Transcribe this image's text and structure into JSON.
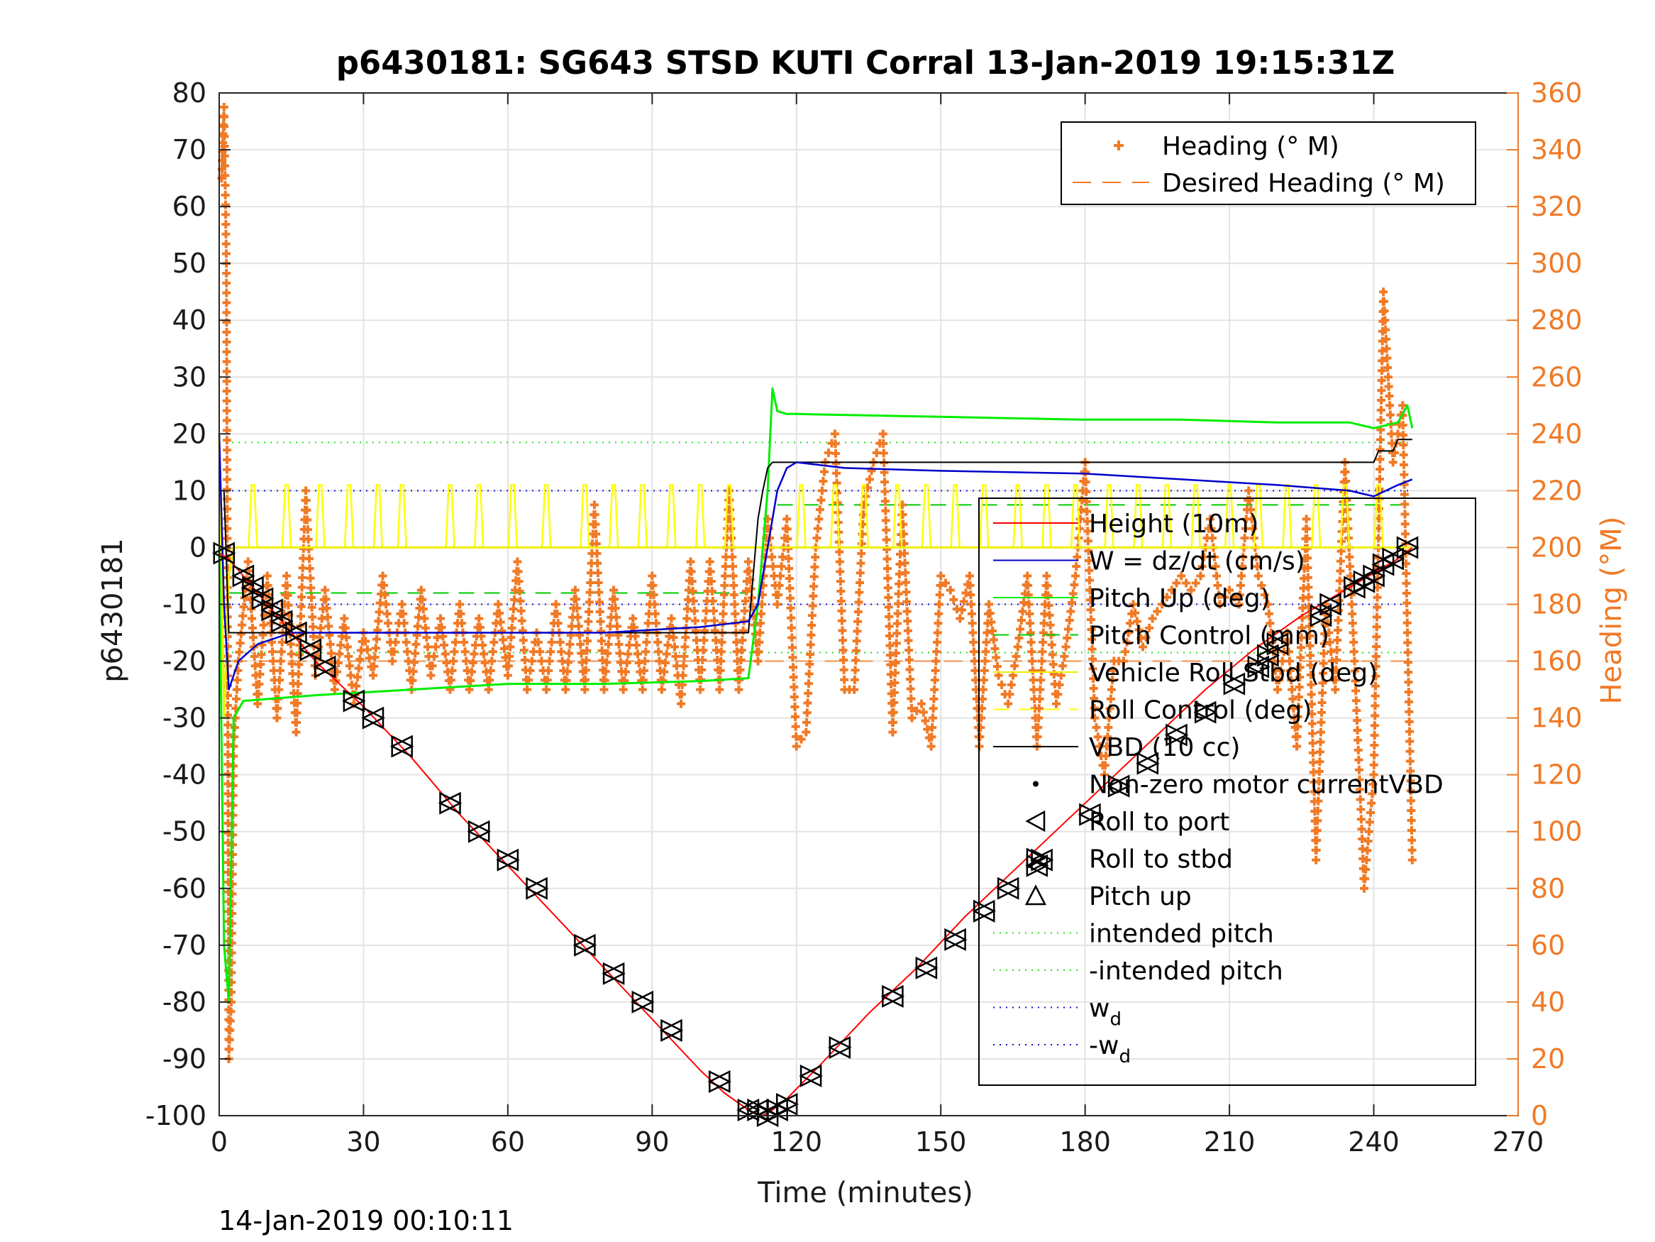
{
  "chart_data": {
    "type": "line",
    "title": "p6430181: SG643 STSD KUTI Corral 13-Jan-2019 19:15:31Z",
    "xlabel": "Time (minutes)",
    "ylabel": "p6430181",
    "y2label": "Heading (°M)",
    "footer": "14-Jan-2019 00:10:11",
    "xlim": [
      0,
      270
    ],
    "ylim": [
      -100,
      80
    ],
    "y2lim": [
      0,
      360
    ],
    "xticks": [
      0,
      30,
      60,
      90,
      120,
      150,
      180,
      210,
      240,
      270
    ],
    "yticks": [
      80,
      70,
      60,
      50,
      40,
      30,
      20,
      10,
      0,
      -10,
      -20,
      -30,
      -40,
      -50,
      -60,
      -70,
      -80,
      -90,
      -100
    ],
    "y2ticks": [
      360,
      340,
      320,
      300,
      280,
      260,
      240,
      220,
      200,
      180,
      160,
      140,
      120,
      100,
      80,
      60,
      40,
      20,
      0
    ],
    "grid": true,
    "colors": {
      "height": "#ff0000",
      "w": "#0000cc",
      "pitch_up": "#00ee00",
      "pitch_control": "#00cc00",
      "roll": "#eeee00",
      "roll_control": "#ffff00",
      "vbd": "#000000",
      "heading": "#f07a26",
      "intended_pitch": "#22dd22",
      "wd": "#1111dd"
    },
    "legend_upper": [
      {
        "label": "Heading (° M)",
        "marker": "plus"
      },
      {
        "label": "Desired Heading (° M)",
        "marker": "dash"
      }
    ],
    "legend_upper_position": "top-right",
    "legend_main": [
      {
        "label": "Height (10m)",
        "marker": "line",
        "color": "#ff0000"
      },
      {
        "label": "W = dz/dt (cm/s)",
        "marker": "line",
        "color": "#0000cc"
      },
      {
        "label": "Pitch Up (deg)",
        "marker": "line",
        "color": "#00ee00"
      },
      {
        "label": "Pitch Control (mm)",
        "marker": "dash",
        "color": "#00cc00"
      },
      {
        "label": "Vehicle Roll Stbd (deg)",
        "marker": "line",
        "color": "#eeee00"
      },
      {
        "label": "Roll Control (deg)",
        "marker": "dash",
        "color": "#ffff00"
      },
      {
        "label": "VBD (10 cc)",
        "marker": "line",
        "color": "#000000"
      },
      {
        "label": "Non-zero motor currentVBD",
        "marker": "dot",
        "color": "#000000"
      },
      {
        "label": "Roll to port",
        "marker": "tri-left",
        "color": "#000000"
      },
      {
        "label": "Roll to stbd",
        "marker": "tri-right",
        "color": "#000000"
      },
      {
        "label": "Pitch up",
        "marker": "tri-up",
        "color": "#000000"
      },
      {
        "label": "intended pitch",
        "marker": "dot-line",
        "color": "#22dd22"
      },
      {
        "label": "-intended pitch",
        "marker": "dot-line",
        "color": "#22dd22"
      },
      {
        "label": "w",
        "sub": "d",
        "marker": "dot-line",
        "color": "#1111dd"
      },
      {
        "label": "-w",
        "sub": "d",
        "marker": "dot-line",
        "color": "#1111dd"
      }
    ],
    "legend_main_position": "center-right",
    "hlines": {
      "intended_pitch": 18.5,
      "neg_intended_pitch": -18.5,
      "wd": 10,
      "neg_wd": -10,
      "pitch_control_dive": -8,
      "pitch_control_climb": 7.5,
      "desired_heading": 160
    },
    "height_series": {
      "x": [
        0,
        2,
        10,
        20,
        30,
        40,
        50,
        60,
        70,
        80,
        90,
        100,
        105,
        110,
        113,
        115,
        118,
        125,
        135,
        145,
        155,
        165,
        175,
        185,
        195,
        205,
        215,
        225,
        235,
        245,
        248
      ],
      "y": [
        -1,
        -2,
        -10,
        -20,
        -28,
        -37,
        -47,
        -56,
        -65,
        -74,
        -83,
        -92,
        -96,
        -99,
        -100,
        -99,
        -97,
        -91,
        -82,
        -74,
        -65,
        -57,
        -49,
        -41,
        -33,
        -25,
        -18,
        -12,
        -7,
        -2,
        0
      ]
    },
    "w_series": {
      "x": [
        0,
        1,
        2,
        4,
        8,
        15,
        30,
        60,
        80,
        100,
        110,
        112,
        114,
        116,
        118,
        120,
        130,
        150,
        180,
        200,
        220,
        235,
        240,
        245,
        248
      ],
      "y": [
        20,
        -10,
        -25,
        -20,
        -17,
        -15,
        -15,
        -15,
        -15,
        -14,
        -13,
        -10,
        0,
        10,
        14,
        15,
        14,
        13.5,
        13,
        12,
        11,
        10,
        9,
        11,
        12
      ]
    },
    "pitch_up_series": {
      "x": [
        0,
        1,
        2,
        3,
        5,
        20,
        40,
        60,
        80,
        100,
        110,
        112,
        114,
        115,
        116,
        118,
        120,
        150,
        180,
        200,
        220,
        235,
        240,
        245,
        247,
        248
      ],
      "y": [
        0,
        -70,
        -80,
        -30,
        -27,
        -26,
        -25,
        -24,
        -24,
        -23.5,
        -23,
        -10,
        10,
        28,
        24,
        23.5,
        23.5,
        23,
        22.5,
        22.5,
        22,
        22,
        21,
        22,
        25,
        21
      ]
    },
    "roll_series": {
      "x": [
        0,
        1,
        2,
        3,
        5,
        15,
        30,
        60,
        90,
        110,
        114,
        120,
        150,
        180,
        210,
        240,
        248
      ],
      "y": [
        20,
        -30,
        -5,
        0,
        0,
        0,
        0,
        0,
        0,
        0,
        0,
        0,
        0,
        0,
        0,
        0,
        0
      ]
    },
    "roll_spikes_x": [
      7,
      14,
      21,
      27,
      33,
      38,
      48,
      54,
      61,
      68,
      76,
      82,
      88,
      94,
      100,
      106,
      121,
      128,
      134,
      141,
      147,
      153,
      159,
      166,
      172,
      178,
      185,
      191,
      197,
      203,
      210,
      216,
      222,
      228,
      234,
      241
    ],
    "vbd_series": {
      "x": [
        0,
        1,
        2,
        110,
        111,
        112,
        113,
        114,
        115,
        116,
        240,
        241,
        244,
        245,
        248
      ],
      "y": [
        10,
        10,
        -15,
        -15,
        -5,
        5,
        10,
        14,
        15,
        15,
        15,
        17,
        17,
        19,
        19
      ]
    },
    "heading_series": {
      "x": [
        0.5,
        1,
        1.5,
        2,
        2.5,
        3,
        4,
        6,
        8,
        10,
        12,
        14,
        16,
        18,
        20,
        22,
        24,
        26,
        28,
        30,
        32,
        34,
        36,
        38,
        40,
        42,
        44,
        46,
        48,
        50,
        52,
        54,
        56,
        58,
        60,
        62,
        64,
        66,
        68,
        70,
        72,
        74,
        76,
        78,
        80,
        82,
        84,
        86,
        88,
        90,
        92,
        94,
        96,
        98,
        100,
        102,
        104,
        106,
        108,
        110,
        112,
        114,
        116,
        118,
        120,
        122,
        124,
        126,
        128,
        130,
        132,
        134,
        136,
        138,
        140,
        142,
        144,
        146,
        148,
        150,
        152,
        154,
        156,
        158,
        160,
        162,
        164,
        166,
        168,
        170,
        172,
        174,
        176,
        178,
        180,
        182,
        184,
        186,
        188,
        190,
        192,
        194,
        196,
        198,
        200,
        202,
        204,
        206,
        208,
        210,
        212,
        214,
        216,
        218,
        220,
        222,
        224,
        226,
        228,
        230,
        232,
        234,
        236,
        238,
        240,
        242,
        244,
        246,
        248
      ],
      "y": [
        330,
        355,
        300,
        20,
        40,
        130,
        160,
        195,
        145,
        190,
        140,
        190,
        135,
        220,
        155,
        185,
        150,
        175,
        145,
        170,
        155,
        190,
        160,
        180,
        150,
        185,
        155,
        175,
        150,
        180,
        150,
        175,
        150,
        180,
        155,
        195,
        150,
        170,
        150,
        180,
        150,
        185,
        150,
        215,
        150,
        185,
        150,
        175,
        150,
        190,
        150,
        175,
        145,
        195,
        150,
        195,
        150,
        220,
        150,
        195,
        160,
        210,
        180,
        210,
        130,
        135,
        200,
        230,
        240,
        150,
        150,
        215,
        230,
        240,
        135,
        215,
        140,
        145,
        130,
        190,
        185,
        175,
        190,
        130,
        180,
        155,
        145,
        165,
        190,
        130,
        190,
        145,
        165,
        190,
        230,
        140,
        120,
        160,
        160,
        180,
        165,
        175,
        180,
        185,
        190,
        185,
        190,
        210,
        180,
        185,
        180,
        220,
        190,
        180,
        150,
        170,
        130,
        210,
        90,
        180,
        150,
        230,
        160,
        80,
        120,
        290,
        230,
        250,
        90
      ]
    },
    "markers": {
      "x": [
        1,
        5,
        7,
        9,
        11,
        13,
        16,
        19,
        22,
        28,
        32,
        38,
        48,
        54,
        60,
        66,
        76,
        82,
        88,
        94,
        104,
        110,
        112,
        114,
        116,
        118,
        123,
        129,
        140,
        147,
        153,
        159,
        164,
        170,
        171,
        181,
        187,
        193,
        199,
        205,
        211,
        216,
        218,
        220,
        229,
        231,
        236,
        238,
        240,
        242,
        244,
        247
      ],
      "y": [
        -1,
        -5,
        -7,
        -9,
        -11,
        -13,
        -15,
        -18,
        -21,
        -27,
        -30,
        -35,
        -45,
        -50,
        -55,
        -60,
        -70,
        -75,
        -80,
        -85,
        -94,
        -99,
        -99,
        -100,
        -99,
        -98,
        -93,
        -88,
        -79,
        -74,
        -69,
        -64,
        -60,
        -56,
        -55,
        -47,
        -42,
        -38,
        -33,
        -29,
        -24,
        -21,
        -19,
        -17,
        -12,
        -10,
        -7,
        -6,
        -5,
        -3,
        -2,
        0
      ]
    }
  }
}
